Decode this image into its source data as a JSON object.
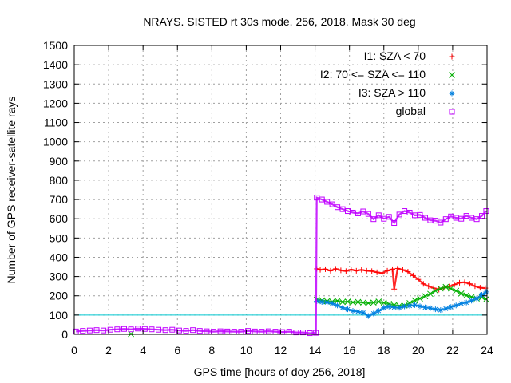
{
  "chart_data": {
    "type": "scatter",
    "title": "NRAYS. SISTED rt 30s mode. 256, 2018. Mask 30 deg",
    "xlabel": "GPS time [hours of doy 256, 2018]",
    "ylabel": "Number of GPS receiver-satellite rays",
    "xlim": [
      0,
      24
    ],
    "ylim": [
      0,
      1500
    ],
    "x_ticks": [
      "0",
      "2",
      "4",
      "6",
      "8",
      "10",
      "12",
      "14",
      "16",
      "18",
      "20",
      "22",
      "24"
    ],
    "y_ticks": [
      "0",
      "100",
      "200",
      "300",
      "400",
      "500",
      "600",
      "700",
      "800",
      "900",
      "1000",
      "1100",
      "1200",
      "1300",
      "1400",
      "1500"
    ],
    "grid": true,
    "legend_position": "top-right",
    "reference_line": {
      "y": 100,
      "color": "#00c8d0"
    },
    "series": [
      {
        "name": "I1: SZA < 70",
        "color": "#ff0000",
        "marker": "+",
        "x": [
          14.1,
          14.3,
          14.6,
          14.9,
          15.2,
          15.5,
          15.8,
          16.1,
          16.4,
          16.7,
          17.0,
          17.3,
          17.6,
          17.9,
          18.2,
          18.5,
          18.8,
          19.1,
          19.4,
          19.7,
          20.0,
          20.3,
          20.6,
          20.9,
          21.2,
          21.5,
          21.8,
          22.1,
          22.4,
          22.7,
          23.0,
          23.3,
          23.6,
          23.9,
          18.6
        ],
        "y": [
          340,
          335,
          338,
          330,
          340,
          332,
          328,
          336,
          330,
          335,
          330,
          328,
          322,
          318,
          330,
          338,
          342,
          335,
          325,
          305,
          285,
          262,
          250,
          240,
          232,
          242,
          248,
          258,
          268,
          270,
          262,
          250,
          242,
          240,
          235
        ]
      },
      {
        "name": "I2: 70 <= SZA <= 110",
        "color": "#00b000",
        "marker": "x",
        "x": [
          14.1,
          14.4,
          14.7,
          15.0,
          15.3,
          15.6,
          15.9,
          16.2,
          16.5,
          16.8,
          17.1,
          17.4,
          17.7,
          18.0,
          18.3,
          18.6,
          18.9,
          19.2,
          19.5,
          19.8,
          20.1,
          20.4,
          20.7,
          21.0,
          21.3,
          21.6,
          21.9,
          22.2,
          22.5,
          22.8,
          23.1,
          23.4,
          23.7,
          23.95,
          3.3
        ],
        "y": [
          180,
          176,
          172,
          170,
          174,
          168,
          170,
          166,
          168,
          165,
          162,
          165,
          170,
          164,
          158,
          152,
          148,
          150,
          162,
          176,
          186,
          198,
          210,
          226,
          238,
          246,
          238,
          226,
          212,
          202,
          194,
          186,
          192,
          182,
          2
        ]
      },
      {
        "name": "I3: SZA > 110",
        "color": "#0080e0",
        "marker": "*",
        "x": [
          14.1,
          14.4,
          14.7,
          15.0,
          15.3,
          15.6,
          15.9,
          16.2,
          16.5,
          16.8,
          17.1,
          17.4,
          17.7,
          18.0,
          18.3,
          18.6,
          18.9,
          19.2,
          19.5,
          19.8,
          20.1,
          20.4,
          20.7,
          21.0,
          21.3,
          21.6,
          21.9,
          22.2,
          22.5,
          22.8,
          23.1,
          23.4,
          23.7,
          23.95
        ],
        "y": [
          172,
          168,
          166,
          160,
          150,
          138,
          130,
          122,
          118,
          112,
          95,
          108,
          122,
          138,
          144,
          140,
          138,
          145,
          148,
          152,
          146,
          140,
          136,
          130,
          126,
          133,
          142,
          150,
          160,
          165,
          175,
          186,
          205,
          220
        ]
      },
      {
        "name": "global",
        "color": "#c000ff",
        "marker": "square",
        "x": [
          0.1,
          0.5,
          0.9,
          1.3,
          1.7,
          2.1,
          2.5,
          2.9,
          3.3,
          3.7,
          4.1,
          4.5,
          4.9,
          5.3,
          5.7,
          6.1,
          6.5,
          6.9,
          7.3,
          7.7,
          8.1,
          8.5,
          8.9,
          9.3,
          9.7,
          10.1,
          10.5,
          10.9,
          11.3,
          11.7,
          12.1,
          12.5,
          12.9,
          13.3,
          13.7,
          14.05,
          14.1,
          14.4,
          14.7,
          15.0,
          15.3,
          15.6,
          15.9,
          16.2,
          16.5,
          16.8,
          17.1,
          17.4,
          17.7,
          18.0,
          18.3,
          18.6,
          18.9,
          19.2,
          19.5,
          19.8,
          20.1,
          20.4,
          20.7,
          21.0,
          21.3,
          21.6,
          21.9,
          22.2,
          22.5,
          22.8,
          23.1,
          23.4,
          23.7,
          23.95
        ],
        "y": [
          15,
          18,
          20,
          22,
          20,
          24,
          26,
          28,
          26,
          30,
          28,
          26,
          24,
          22,
          24,
          20,
          18,
          22,
          18,
          16,
          14,
          16,
          15,
          14,
          14,
          18,
          15,
          14,
          16,
          14,
          12,
          14,
          10,
          10,
          6,
          8,
          710,
          700,
          688,
          675,
          660,
          650,
          640,
          632,
          628,
          638,
          625,
          598,
          618,
          600,
          610,
          578,
          622,
          640,
          632,
          618,
          620,
          605,
          592,
          590,
          580,
          598,
          612,
          605,
          600,
          615,
          605,
          598,
          615,
          640
        ]
      }
    ]
  }
}
